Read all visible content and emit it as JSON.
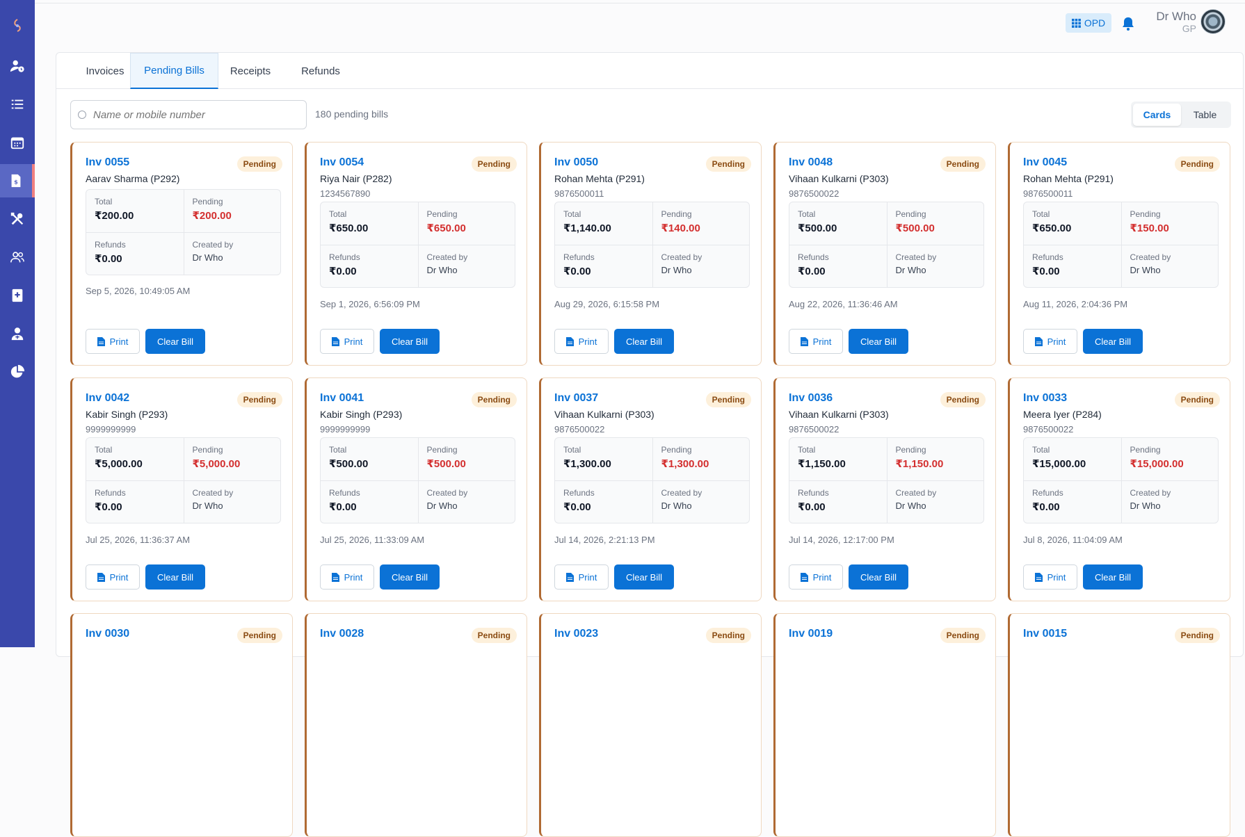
{
  "header": {
    "mode_label": "OPD",
    "user_name": "Dr Who",
    "user_role": "GP"
  },
  "tabs": [
    {
      "label": "Invoices"
    },
    {
      "label": "Pending Bills"
    },
    {
      "label": "Receipts"
    },
    {
      "label": "Refunds"
    }
  ],
  "search": {
    "placeholder": "Name or mobile number",
    "value": ""
  },
  "pending_count": "180 pending bills",
  "view_toggle": {
    "cards": "Cards",
    "table": "Table"
  },
  "labels": {
    "total": "Total",
    "pending": "Pending",
    "refunds": "Refunds",
    "created_by": "Created by",
    "print": "Print",
    "clear_bill": "Clear Bill",
    "status": "Pending"
  },
  "bills": [
    {
      "inv": "Inv 0055",
      "patient": "Aarav Sharma (P292)",
      "phone": "",
      "total": "₹200.00",
      "pending": "₹200.00",
      "refunds": "₹0.00",
      "created_by": "Dr Who",
      "date": "Sep 5, 2026, 10:49:05 AM"
    },
    {
      "inv": "Inv 0054",
      "patient": "Riya Nair (P282)",
      "phone": "1234567890",
      "total": "₹650.00",
      "pending": "₹650.00",
      "refunds": "₹0.00",
      "created_by": "Dr Who",
      "date": "Sep 1, 2026, 6:56:09 PM"
    },
    {
      "inv": "Inv 0050",
      "patient": "Rohan Mehta (P291)",
      "phone": "9876500011",
      "total": "₹1,140.00",
      "pending": "₹140.00",
      "refunds": "₹0.00",
      "created_by": "Dr Who",
      "date": "Aug 29, 2026, 6:15:58 PM"
    },
    {
      "inv": "Inv 0048",
      "patient": "Vihaan Kulkarni (P303)",
      "phone": "9876500022",
      "total": "₹500.00",
      "pending": "₹500.00",
      "refunds": "₹0.00",
      "created_by": "Dr Who",
      "date": "Aug 22, 2026, 11:36:46 AM"
    },
    {
      "inv": "Inv 0045",
      "patient": "Rohan Mehta (P291)",
      "phone": "9876500011",
      "total": "₹650.00",
      "pending": "₹150.00",
      "refunds": "₹0.00",
      "created_by": "Dr Who",
      "date": "Aug 11, 2026, 2:04:36 PM"
    },
    {
      "inv": "Inv 0042",
      "patient": "Kabir Singh (P293)",
      "phone": "9999999999",
      "total": "₹5,000.00",
      "pending": "₹5,000.00",
      "refunds": "₹0.00",
      "created_by": "Dr Who",
      "date": "Jul 25, 2026, 11:36:37 AM"
    },
    {
      "inv": "Inv 0041",
      "patient": "Kabir Singh (P293)",
      "phone": "9999999999",
      "total": "₹500.00",
      "pending": "₹500.00",
      "refunds": "₹0.00",
      "created_by": "Dr Who",
      "date": "Jul 25, 2026, 11:33:09 AM"
    },
    {
      "inv": "Inv 0037",
      "patient": "Vihaan Kulkarni (P303)",
      "phone": "9876500022",
      "total": "₹1,300.00",
      "pending": "₹1,300.00",
      "refunds": "₹0.00",
      "created_by": "Dr Who",
      "date": "Jul 14, 2026, 2:21:13 PM"
    },
    {
      "inv": "Inv 0036",
      "patient": "Vihaan Kulkarni (P303)",
      "phone": "9876500022",
      "total": "₹1,150.00",
      "pending": "₹1,150.00",
      "refunds": "₹0.00",
      "created_by": "Dr Who",
      "date": "Jul 14, 2026, 12:17:00 PM"
    },
    {
      "inv": "Inv 0033",
      "patient": "Meera Iyer (P284)",
      "phone": "9876500022",
      "total": "₹15,000.00",
      "pending": "₹15,000.00",
      "refunds": "₹0.00",
      "created_by": "Dr Who",
      "date": "Jul 8, 2026, 11:04:09 AM"
    },
    {
      "inv": "Inv 0030"
    },
    {
      "inv": "Inv 0028"
    },
    {
      "inv": "Inv 0023"
    },
    {
      "inv": "Inv 0019"
    },
    {
      "inv": "Inv 0015"
    }
  ]
}
